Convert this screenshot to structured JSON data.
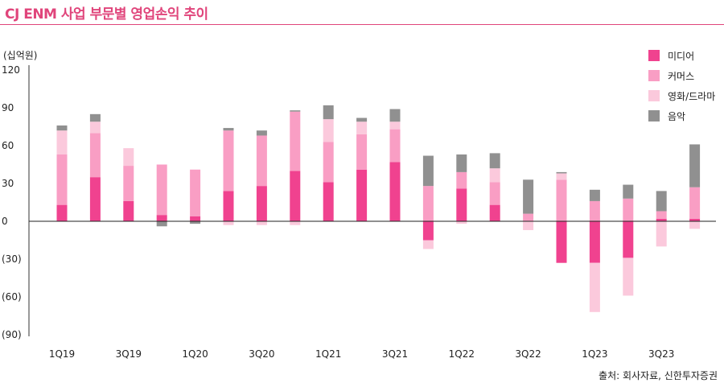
{
  "title": "CJ ENM 사업 부문별 영업손익 추이",
  "unit_label": "(십억원)",
  "source": "출처: 회사자료, 신한투자증권",
  "chart_data": {
    "type": "bar",
    "stacked": true,
    "ylim": [
      -90,
      120
    ],
    "yticks": [
      120,
      90,
      60,
      30,
      0,
      -30,
      -60,
      -90
    ],
    "ytick_labels": [
      "120",
      "90",
      "60",
      "30",
      "0",
      "(30)",
      "(60)",
      "(90)"
    ],
    "categories": [
      "1Q19",
      "2Q19",
      "3Q19",
      "4Q19",
      "1Q20",
      "2Q20",
      "3Q20",
      "4Q20",
      "1Q21",
      "2Q21",
      "3Q21",
      "4Q21",
      "1Q22",
      "2Q22",
      "3Q22",
      "4Q22",
      "1Q23",
      "2Q23",
      "3Q23",
      "4Q23"
    ],
    "xtick_labels": [
      "1Q19",
      "",
      "3Q19",
      "",
      "1Q20",
      "",
      "3Q20",
      "",
      "1Q21",
      "",
      "3Q21",
      "",
      "1Q22",
      "",
      "3Q22",
      "",
      "1Q23",
      "",
      "3Q23",
      ""
    ],
    "legend_position": "top-right",
    "series": [
      {
        "name": "미디어",
        "color": "#f0428f",
        "values": [
          13,
          35,
          16,
          5,
          4,
          24,
          28,
          40,
          31,
          41,
          47,
          -15,
          26,
          13,
          0,
          -33,
          -33,
          -29,
          2,
          2
        ]
      },
      {
        "name": "커머스",
        "color": "#f99ec4",
        "values": [
          40,
          35,
          28,
          40,
          37,
          48,
          40,
          47,
          32,
          28,
          26,
          28,
          13,
          18,
          6,
          33,
          16,
          18,
          6,
          25
        ]
      },
      {
        "name": "영화/드라마",
        "color": "#fbc9dc",
        "values": [
          19,
          9,
          14,
          0,
          0,
          -3,
          -3,
          -3,
          18,
          10,
          6,
          -7,
          -2,
          11,
          -7,
          5,
          -39,
          -30,
          -20,
          -6
        ]
      },
      {
        "name": "음악",
        "color": "#909090",
        "values": [
          4,
          6,
          0,
          -4,
          -2,
          2,
          4,
          1,
          11,
          3,
          10,
          24,
          14,
          12,
          27,
          1,
          9,
          11,
          16,
          34
        ]
      }
    ]
  }
}
